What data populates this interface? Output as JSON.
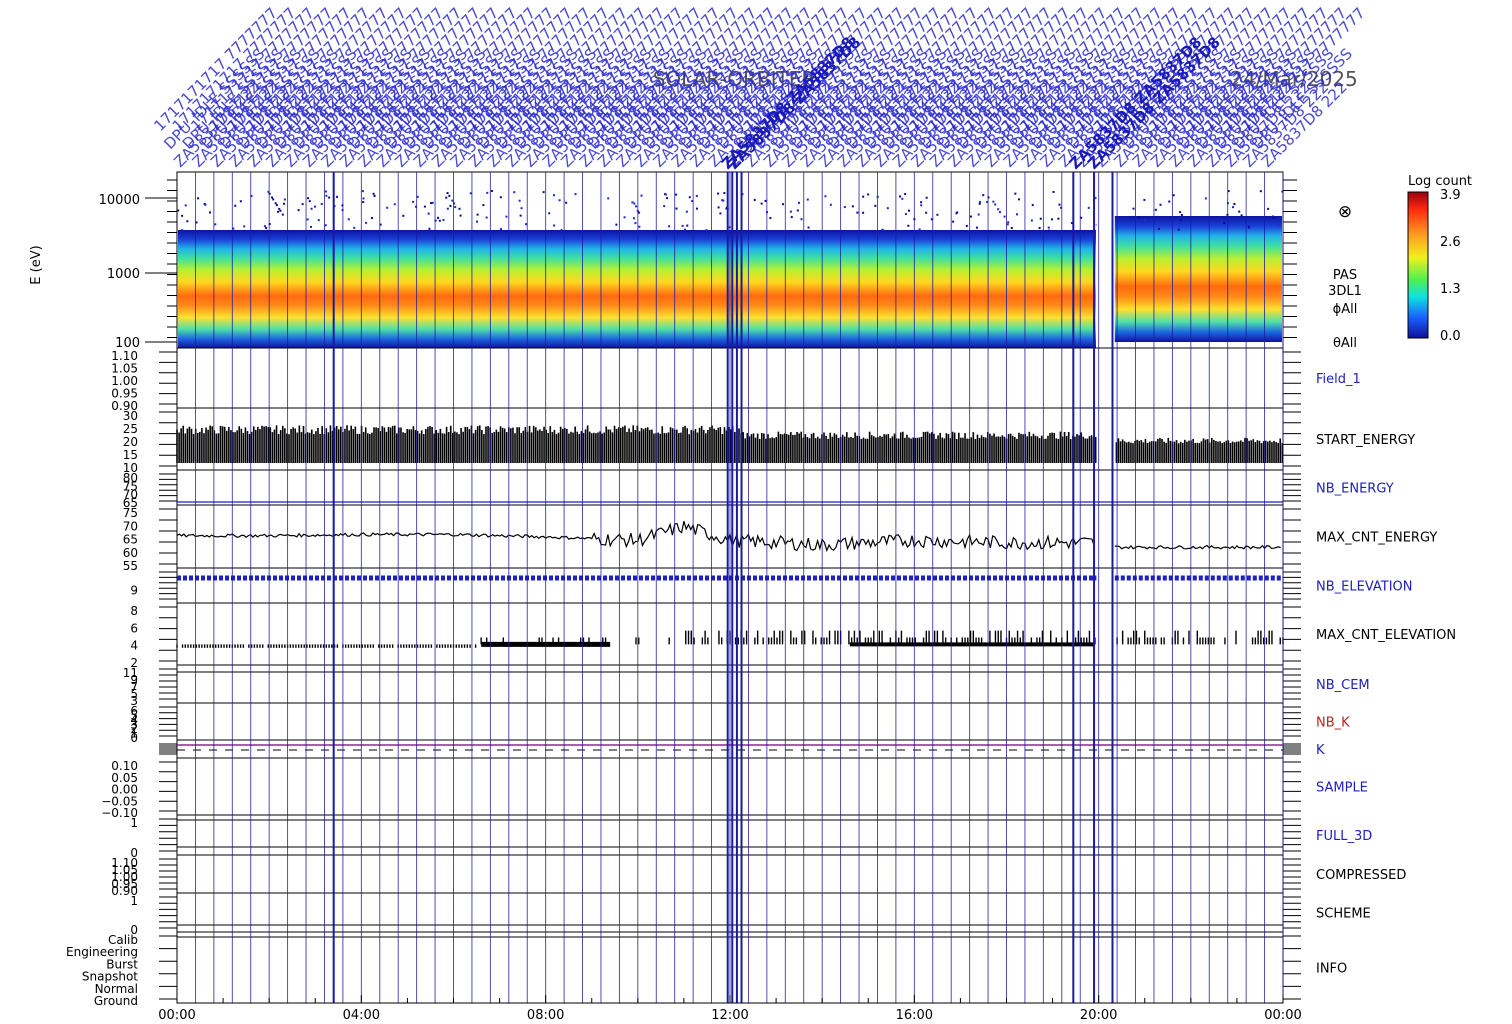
{
  "header": {
    "mission": "SOLAR-ORBITER",
    "date": "24/Mar/2025"
  },
  "colors": {
    "blue_label": "#2020c0",
    "red_label": "#c02020",
    "black": "#000000",
    "vline": "#1a1aa0",
    "k_line": "#8a2a8a"
  },
  "spectrogram": {
    "ylabel": "E (eV)",
    "yticks": [
      "10000",
      "1000",
      "100"
    ],
    "right_labels": [
      "PAS",
      "3DL1",
      "ϕAll",
      "θAll"
    ],
    "colorbar_title": "Log count",
    "colorbar_ticks": [
      "3.9",
      "2.6",
      "1.3",
      "0.0"
    ],
    "symbol": "⊗"
  },
  "panels": [
    {
      "id": "field1",
      "label": "Field_1",
      "color": "blue",
      "ticks": [
        "1.10",
        "1.05",
        "1.00",
        "0.95",
        "0.90"
      ]
    },
    {
      "id": "start_energy",
      "label": "START_ENERGY",
      "color": "black",
      "ticks": [
        "30",
        "25",
        "20",
        "15",
        "10"
      ]
    },
    {
      "id": "nb_energy",
      "label": "NB_ENERGY",
      "color": "blue",
      "ticks": [
        "80",
        "75",
        "70",
        "65"
      ]
    },
    {
      "id": "max_cnt_energy",
      "label": "MAX_CNT_ENERGY",
      "color": "black",
      "ticks": [
        "75",
        "70",
        "65",
        "60",
        "55"
      ]
    },
    {
      "id": "nb_elevation",
      "label": "NB_ELEVATION",
      "color": "blue",
      "ticks": [
        "9"
      ]
    },
    {
      "id": "max_cnt_elevation",
      "label": "MAX_CNT_ELEVATION",
      "color": "black",
      "ticks": [
        "8",
        "6",
        "4",
        "2"
      ]
    },
    {
      "id": "nb_cem",
      "label": "NB_CEM",
      "color": "blue",
      "ticks": [
        "11",
        "9",
        "7",
        "5",
        "3"
      ]
    },
    {
      "id": "nb_k",
      "label": "NB_K",
      "color": "red",
      "ticks": [
        "6",
        "5",
        "4",
        "3",
        "2",
        "1",
        "0"
      ]
    },
    {
      "id": "k",
      "label": "K",
      "color": "blue",
      "ticks": []
    },
    {
      "id": "sample",
      "label": "SAMPLE",
      "color": "blue",
      "ticks": [
        "0.10",
        "0.05",
        "0.00",
        "−0.05",
        "−0.10"
      ]
    },
    {
      "id": "full_3d",
      "label": "FULL_3D",
      "color": "blue",
      "ticks": [
        "1",
        "0"
      ]
    },
    {
      "id": "compressed",
      "label": "COMPRESSED",
      "color": "black",
      "ticks": [
        "1.10",
        "1.05",
        "1.00",
        "0.95",
        "0.90"
      ]
    },
    {
      "id": "scheme",
      "label": "SCHEME",
      "color": "black",
      "ticks": [
        "1",
        "0"
      ]
    },
    {
      "id": "info",
      "label": "INFO",
      "color": "black",
      "ticks": [
        "Calib",
        "Engineering",
        "Burst",
        "Snapshot",
        "Normal",
        "Ground"
      ]
    }
  ],
  "chart_data": {
    "type": "heatmap",
    "title": "SOLAR-ORBITER 24/Mar/2025",
    "xlabel": "",
    "ylabel": "E (eV)",
    "x_ticks": [
      "00:00",
      "04:00",
      "08:00",
      "12:00",
      "16:00",
      "20:00",
      "00:00"
    ],
    "x_range_hours": [
      0,
      24
    ],
    "y_scale": "log",
    "ylim": [
      100,
      15000
    ],
    "colorbar": {
      "title": "Log count",
      "range": [
        0.0,
        3.9
      ]
    },
    "data_gap_hours": [
      20.0,
      20.35
    ],
    "peak_energy_eV_by_hour": [
      {
        "hour": 0,
        "energy": 420
      },
      {
        "hour": 4,
        "energy": 420
      },
      {
        "hour": 8,
        "energy": 460
      },
      {
        "hour": 11,
        "energy": 480
      },
      {
        "hour": 14,
        "energy": 520
      },
      {
        "hour": 18,
        "energy": 540
      },
      {
        "hour": 21,
        "energy": 560
      },
      {
        "hour": 24,
        "energy": 560
      }
    ],
    "series": [
      {
        "name": "MAX_CNT_ENERGY",
        "x_hours": [
          0,
          2,
          4,
          6,
          8,
          10,
          11,
          12,
          14,
          16,
          18,
          19.9,
          20.4,
          22,
          24
        ],
        "values": [
          66,
          66,
          66.5,
          66.5,
          65.5,
          64,
          70,
          64,
          62,
          64,
          63,
          63,
          61,
          61,
          61
        ]
      },
      {
        "name": "START_ENERGY",
        "x_hours": [
          0,
          12,
          13,
          20,
          24
        ],
        "values": [
          27,
          27,
          24,
          24,
          22
        ]
      },
      {
        "name": "MAX_CNT_ELEVATION",
        "x_hours": [
          0,
          6,
          9,
          12,
          14,
          17,
          20,
          24
        ],
        "values": [
          4,
          4,
          4,
          5,
          4,
          4,
          4,
          5
        ]
      }
    ]
  },
  "event_lines_hours": [
    3.4,
    11.95,
    12.05,
    12.15,
    12.25,
    19.45,
    19.9,
    20.3
  ],
  "grid_lines_hours_step": 0.4
}
